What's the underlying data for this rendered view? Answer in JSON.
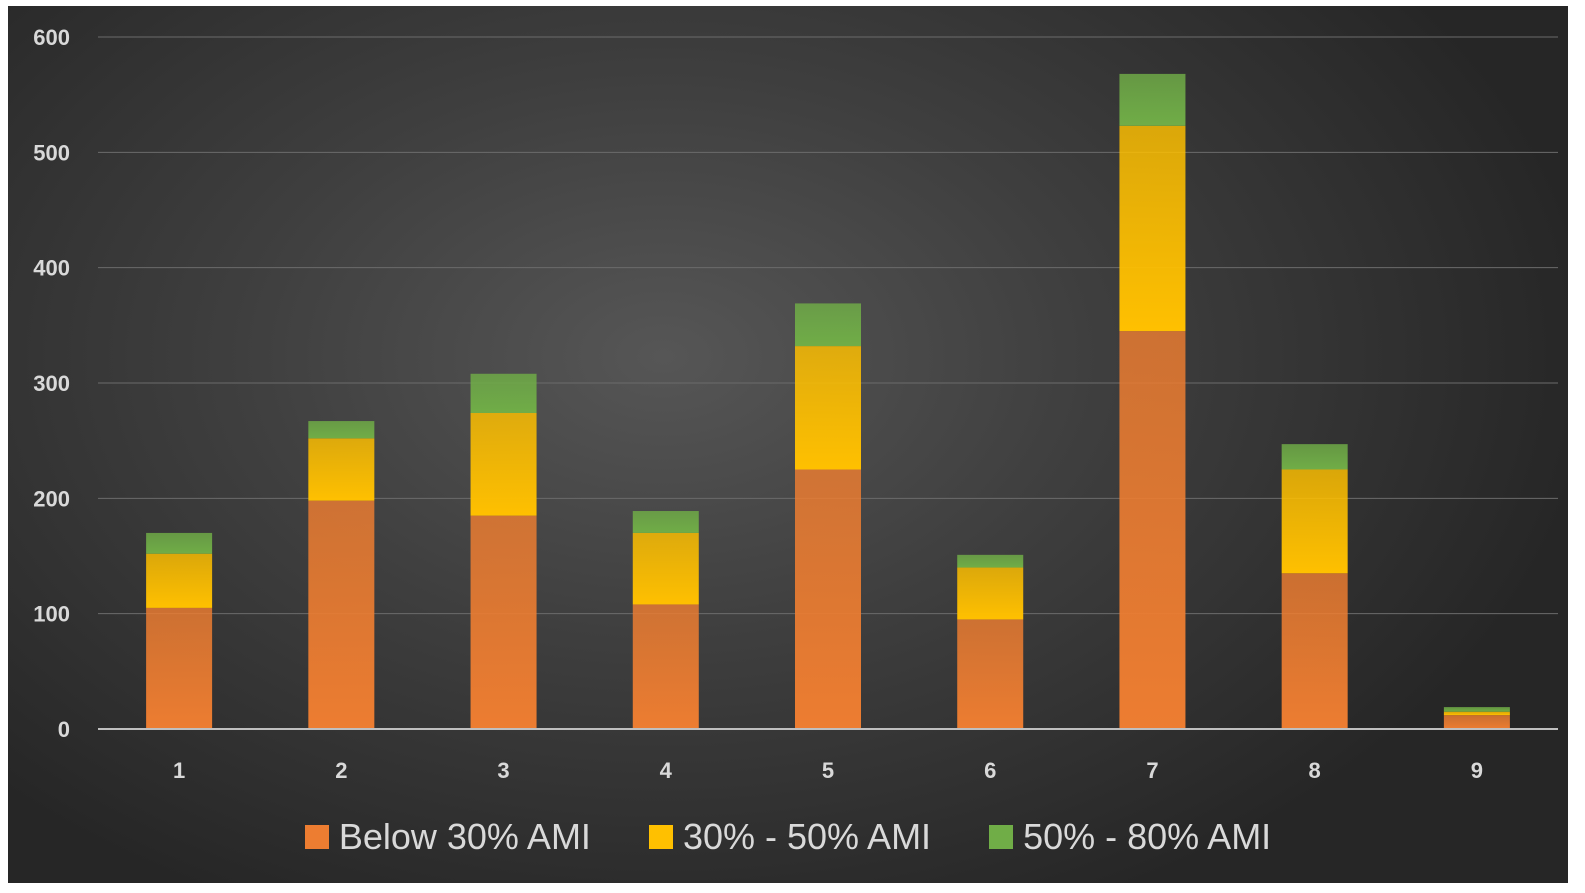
{
  "chart_data": {
    "type": "bar",
    "stacked": true,
    "title": "",
    "xlabel": "",
    "ylabel": "",
    "categories": [
      "1",
      "2",
      "3",
      "4",
      "5",
      "6",
      "7",
      "8",
      "9"
    ],
    "ylim": [
      0,
      600
    ],
    "yticks": [
      0,
      100,
      200,
      300,
      400,
      500,
      600
    ],
    "grid": true,
    "legend_position": "bottom",
    "series": [
      {
        "name": "Below 30% AMI",
        "color": "#ed7d31",
        "values": [
          105,
          198,
          185,
          108,
          225,
          95,
          345,
          135,
          12
        ]
      },
      {
        "name": "30% - 50% AMI",
        "color": "#ffc000",
        "values": [
          47,
          54,
          89,
          62,
          107,
          45,
          178,
          90,
          3
        ]
      },
      {
        "name": "50% - 80% AMI",
        "color": "#70ad47",
        "values": [
          18,
          15,
          34,
          19,
          37,
          11,
          45,
          22,
          4
        ]
      }
    ]
  }
}
